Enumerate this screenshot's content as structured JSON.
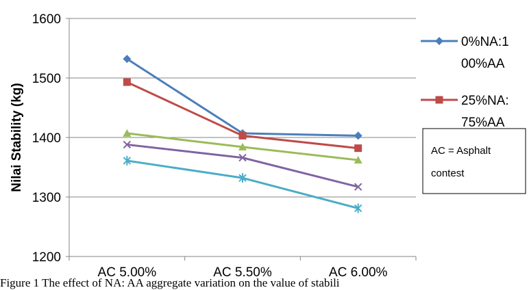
{
  "chart_data": {
    "type": "line",
    "categories": [
      "AC 5.00%",
      "AC 5.50%",
      "AC 6.00%"
    ],
    "ylabel": "Nilai Stability (kg)",
    "ylim": [
      1200,
      1600
    ],
    "yticks": [
      "1200",
      "1300",
      "1400",
      "1500",
      "1600"
    ],
    "grid": true,
    "legend_position": "right",
    "series": [
      {
        "name": "0%NA:100%AA",
        "legend_lines": [
          "0%NA:1",
          "00%AA"
        ],
        "color": "#4a7ebb",
        "marker": "diamond",
        "values": [
          1532,
          1407,
          1403
        ]
      },
      {
        "name": "25%NA:75%AA",
        "legend_lines": [
          "25%NA:",
          "75%AA"
        ],
        "color": "#be4b48",
        "marker": "square",
        "values": [
          1493,
          1403,
          1382
        ]
      },
      {
        "color": "#9bbb59",
        "marker": "triangle",
        "values": [
          1407,
          1384,
          1362
        ]
      },
      {
        "color": "#7f63a1",
        "marker": "x",
        "values": [
          1388,
          1366,
          1317
        ]
      },
      {
        "color": "#4bacc6",
        "marker": "star",
        "values": [
          1361,
          1332,
          1281
        ]
      }
    ],
    "annotation": [
      "AC = Asphalt",
      "contest"
    ]
  },
  "caption": "Figure 1 The effect of NA: AA aggregate variation on the value of stabili"
}
